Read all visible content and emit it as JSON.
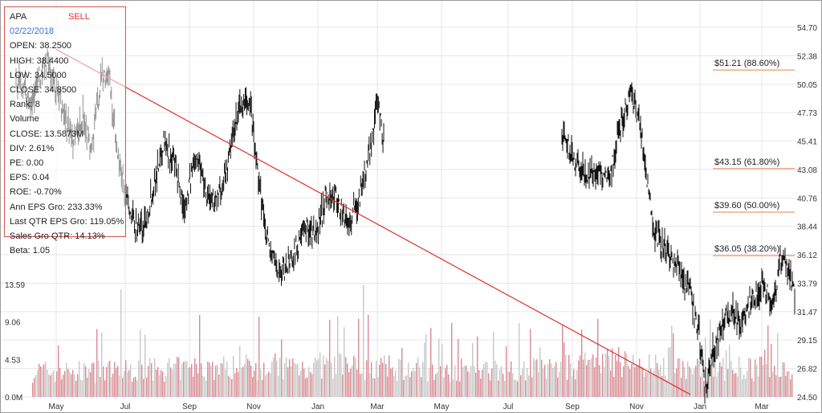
{
  "info": {
    "ticker": "APA",
    "signal": "SELL",
    "date": "02/22/2018",
    "rows": [
      "OPEN: 38.2500",
      "HIGH: 38.4400",
      "LOW: 34.5000",
      "CLOSE: 34.8500",
      "Rank: 8",
      "Volume",
      "CLOSE: 13.5873M",
      "DIV: 2.61%",
      "PE: 0.00",
      "EPS: 0.04",
      "ROE: -0.70%",
      "Ann EPS Gro: 233.33%",
      "Last QTR EPS Gro: 119.05%",
      "Sales Gro QTR: 14.13%",
      "Beta: 1.05"
    ]
  },
  "colors": {
    "price": "#111111",
    "trendline": "#e0302a",
    "fib": "#e8804a",
    "volume_red": "#d98a93",
    "volume_gray": "#c8c8c8",
    "grid": "#e6e6e6",
    "border": "#9a9a9a"
  },
  "chart_data": {
    "type": "line",
    "price_axis": {
      "ticks": [
        "54.70",
        "52.38",
        "50.05",
        "47.73",
        "45.41",
        "43.08",
        "40.76",
        "38.44",
        "36.12",
        "33.79",
        "31.47",
        "29.15",
        "26.82",
        "24.50"
      ],
      "ylim": [
        24.5,
        54.7
      ]
    },
    "volume_axis": {
      "ticks": [
        "13.59",
        "9.06",
        "4.53",
        "0.0M"
      ],
      "ylim": [
        0,
        13.59
      ]
    },
    "x_axis": {
      "ticks": [
        "May",
        "Jul",
        "Sep",
        "Nov",
        "Jan",
        "Mar",
        "May",
        "Jul",
        "Sep",
        "Nov",
        "Jan",
        "Mar"
      ],
      "n_points": 480
    },
    "price_waypoints": [
      [
        0,
        50.5
      ],
      [
        20,
        48.8
      ],
      [
        40,
        52.0
      ],
      [
        60,
        48.0
      ],
      [
        75,
        45.5
      ],
      [
        88,
        47.5
      ],
      [
        98,
        44.5
      ],
      [
        110,
        50.5
      ],
      [
        120,
        51.0
      ],
      [
        132,
        44.0
      ],
      [
        150,
        39.0
      ],
      [
        165,
        38.3
      ],
      [
        178,
        41.5
      ],
      [
        192,
        45.5
      ],
      [
        205,
        43.5
      ],
      [
        218,
        40.0
      ],
      [
        235,
        44.5
      ],
      [
        248,
        41.0
      ],
      [
        262,
        40.5
      ],
      [
        275,
        43.5
      ],
      [
        290,
        48.0
      ],
      [
        305,
        48.5
      ],
      [
        315,
        42.0
      ],
      [
        330,
        36.5
      ],
      [
        343,
        34.5
      ],
      [
        360,
        36.0
      ],
      [
        378,
        38.5
      ],
      [
        390,
        37.5
      ],
      [
        403,
        41.0
      ],
      [
        418,
        40.5
      ],
      [
        432,
        38.5
      ],
      [
        445,
        40.5
      ],
      [
        460,
        44.5
      ],
      [
        470,
        49.0
      ],
      [
        478,
        45.5
      ]
    ],
    "price_waypoints_2": [
      [
        0,
        45.5
      ],
      [
        15,
        44.0
      ],
      [
        30,
        42.5
      ],
      [
        45,
        43.0
      ],
      [
        60,
        42.5
      ],
      [
        72,
        46.5
      ],
      [
        85,
        49.5
      ],
      [
        95,
        47.5
      ],
      [
        105,
        43.0
      ],
      [
        115,
        38.0
      ],
      [
        130,
        36.5
      ],
      [
        145,
        35.0
      ],
      [
        158,
        33.5
      ],
      [
        170,
        30.0
      ],
      [
        178,
        25.0
      ],
      [
        188,
        28.0
      ],
      [
        200,
        30.5
      ],
      [
        212,
        31.5
      ],
      [
        225,
        30.5
      ],
      [
        238,
        32.5
      ],
      [
        252,
        33.5
      ],
      [
        262,
        32.0
      ],
      [
        272,
        35.5
      ],
      [
        282,
        35.0
      ],
      [
        290,
        32.8
      ]
    ],
    "trendline": {
      "from": [
        0,
        52.9
      ],
      "to": [
        769,
        24.7
      ]
    },
    "fib_levels": [
      {
        "label": "$51.21 (88.60%)",
        "value": 51.21
      },
      {
        "label": "$43.15 (61.80%)",
        "value": 43.15
      },
      {
        "label": "$39.60 (50.00%)",
        "value": 39.6
      },
      {
        "label": "$36.05 (38.20%)",
        "value": 36.05
      }
    ],
    "volume_waypoints": [
      [
        0,
        3.2
      ],
      [
        100,
        3.0
      ],
      [
        200,
        3.3
      ],
      [
        300,
        3.6
      ],
      [
        400,
        3.8
      ],
      [
        500,
        3.4
      ],
      [
        600,
        3.2
      ],
      [
        700,
        3.5
      ],
      [
        770,
        4.2
      ],
      [
        830,
        3.4
      ]
    ],
    "volume_spikes": [
      [
        150,
        13.0
      ],
      [
        248,
        9.9
      ],
      [
        322,
        9.7
      ],
      [
        452,
        13.5
      ],
      [
        505,
        7.7
      ],
      [
        570,
        7.0
      ],
      [
        660,
        8.2
      ],
      [
        781,
        7.2
      ],
      [
        836,
        8.6
      ],
      [
        904,
        5.6
      ]
    ]
  }
}
